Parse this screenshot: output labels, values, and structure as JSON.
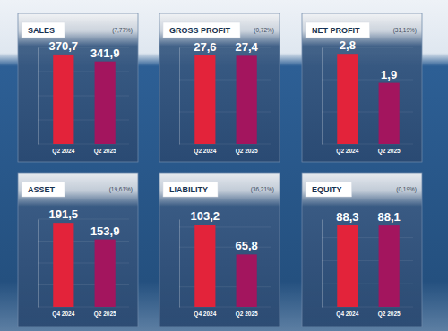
{
  "chart_data": [
    {
      "type": "bar",
      "title": "SALES",
      "subtitle": "(7,77%)",
      "categories": [
        "Q2 2024",
        "Q2 2025"
      ],
      "values": [
        370.7,
        341.9
      ],
      "value_labels": [
        "370,7",
        "341,9"
      ],
      "colors": [
        "#e3233a",
        "#a3155e"
      ],
      "ylim": [
        0,
        400
      ],
      "yticks": [
        0,
        100,
        200,
        300,
        400
      ],
      "grid": true,
      "data_labels": true,
      "tick_labels": "x"
    },
    {
      "type": "bar",
      "title": "GROSS PROFIT",
      "subtitle": "(0,72%)",
      "categories": [
        "Q2 2024",
        "Q2 2025"
      ],
      "values": [
        27.6,
        27.4
      ],
      "value_labels": [
        "27,6",
        "27,4"
      ],
      "colors": [
        "#e3233a",
        "#a3155e"
      ],
      "ylim": [
        0,
        30
      ],
      "yticks": [
        0,
        10,
        20,
        30
      ],
      "grid": true,
      "data_labels": true,
      "tick_labels": "x"
    },
    {
      "type": "bar",
      "title": "NET PROFIT",
      "subtitle": "(31,19%)",
      "categories": [
        "Q2 2024",
        "Q2 2025"
      ],
      "values": [
        2.8,
        1.9
      ],
      "value_labels": [
        "2,8",
        "1,9"
      ],
      "colors": [
        "#e3233a",
        "#a3155e"
      ],
      "ylim": [
        0,
        3
      ],
      "yticks": [
        0,
        1,
        2,
        3
      ],
      "grid": true,
      "data_labels": true,
      "tick_labels": "x"
    },
    {
      "type": "bar",
      "title": "ASSET",
      "subtitle": "(19,61%)",
      "categories": [
        "Q4 2024",
        "Q2 2025"
      ],
      "values": [
        191.5,
        153.9
      ],
      "value_labels": [
        "191,5",
        "153,9"
      ],
      "colors": [
        "#e3233a",
        "#a3155e"
      ],
      "ylim": [
        0,
        200
      ],
      "yticks": [
        0,
        50,
        100,
        150,
        200
      ],
      "grid": true,
      "data_labels": true,
      "tick_labels": "x"
    },
    {
      "type": "bar",
      "title": "LIABILITY",
      "subtitle": "(36,21%)",
      "categories": [
        "Q4 2024",
        "Q2 2025"
      ],
      "values": [
        103.2,
        65.8
      ],
      "value_labels": [
        "103,2",
        "65,8"
      ],
      "colors": [
        "#e3233a",
        "#a3155e"
      ],
      "ylim": [
        0,
        110
      ],
      "yticks": [
        0,
        25,
        50,
        75,
        100
      ],
      "grid": true,
      "data_labels": true,
      "tick_labels": "x"
    },
    {
      "type": "bar",
      "title": "EQUITY",
      "subtitle": "(0,19%)",
      "categories": [
        "Q4 2024",
        "Q2 2025"
      ],
      "values": [
        88.3,
        88.1
      ],
      "value_labels": [
        "88,3",
        "88,1"
      ],
      "colors": [
        "#e3233a",
        "#a3155e"
      ],
      "ylim": [
        0,
        95
      ],
      "yticks": [
        0,
        25,
        50,
        75
      ],
      "grid": true,
      "data_labels": true,
      "tick_labels": "x"
    }
  ]
}
